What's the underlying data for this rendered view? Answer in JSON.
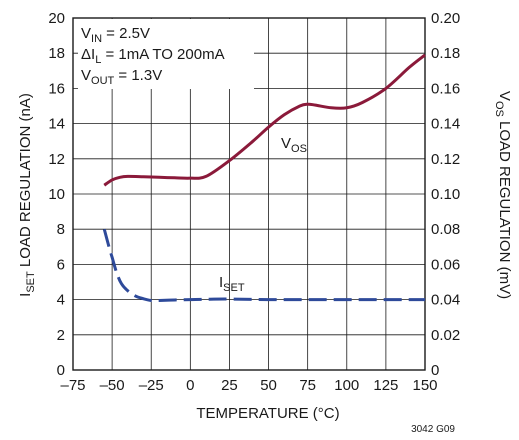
{
  "chart_data": {
    "type": "line",
    "x_label": "TEMPERATURE (°C)",
    "y_left_label": {
      "main": "I",
      "sub": "SET",
      "rest": " LOAD REGULATION (nA)"
    },
    "y_right_label": {
      "main": "V",
      "sub": "OS",
      "rest": " LOAD REGULATION (mV)"
    },
    "xlim": [
      -75,
      150
    ],
    "ylim_left": [
      0,
      20
    ],
    "ylim_right": [
      0,
      0.2
    ],
    "x_ticks": [
      "–75",
      "–50",
      "–25",
      "0",
      "25",
      "50",
      "75",
      "100",
      "125",
      "150"
    ],
    "y_left_ticks": [
      "0",
      "2",
      "4",
      "6",
      "8",
      "10",
      "12",
      "14",
      "16",
      "18",
      "20"
    ],
    "y_right_ticks": [
      "0",
      "0.02",
      "0.04",
      "0.06",
      "0.08",
      "0.10",
      "0.12",
      "0.14",
      "0.16",
      "0.18",
      "0.20"
    ],
    "grid": true,
    "conditions": [
      {
        "main": "V",
        "sub": "IN",
        "rest": " = 2.5V"
      },
      {
        "main": "ΔI",
        "sub": "L",
        "rest": " = 1mA TO 200mA"
      },
      {
        "main": "V",
        "sub": "OUT",
        "rest": " = 1.3V"
      }
    ],
    "series": [
      {
        "label": {
          "main": "V",
          "sub": "OS"
        },
        "axis": "right",
        "color": "#8b1a3a",
        "style": "solid",
        "x": [
          -55,
          -50,
          -45,
          -40,
          -30,
          -20,
          -10,
          0,
          10,
          25,
          40,
          50,
          60,
          70,
          75,
          80,
          90,
          100,
          110,
          125,
          140,
          150
        ],
        "y": [
          0.105,
          0.108,
          0.1095,
          0.11,
          0.1098,
          0.1095,
          0.1092,
          0.109,
          0.11,
          0.119,
          0.13,
          0.138,
          0.145,
          0.15,
          0.151,
          0.1505,
          0.149,
          0.149,
          0.152,
          0.16,
          0.172,
          0.179
        ]
      },
      {
        "label": {
          "main": "I",
          "sub": "SET"
        },
        "axis": "left",
        "color": "#2e4a9a",
        "style": "dashed",
        "x": [
          -55,
          -52,
          -50,
          -47,
          -44,
          -40,
          -35,
          -30,
          -25,
          -20,
          -10,
          0,
          10,
          25,
          50,
          75,
          100,
          125,
          150
        ],
        "y": [
          8.0,
          7.0,
          6.4,
          5.5,
          4.9,
          4.5,
          4.2,
          4.05,
          3.95,
          3.95,
          3.98,
          4.0,
          4.02,
          4.03,
          4.0,
          4.0,
          4.0,
          4.0,
          4.0
        ]
      }
    ]
  },
  "figure_id": "3042 G09"
}
